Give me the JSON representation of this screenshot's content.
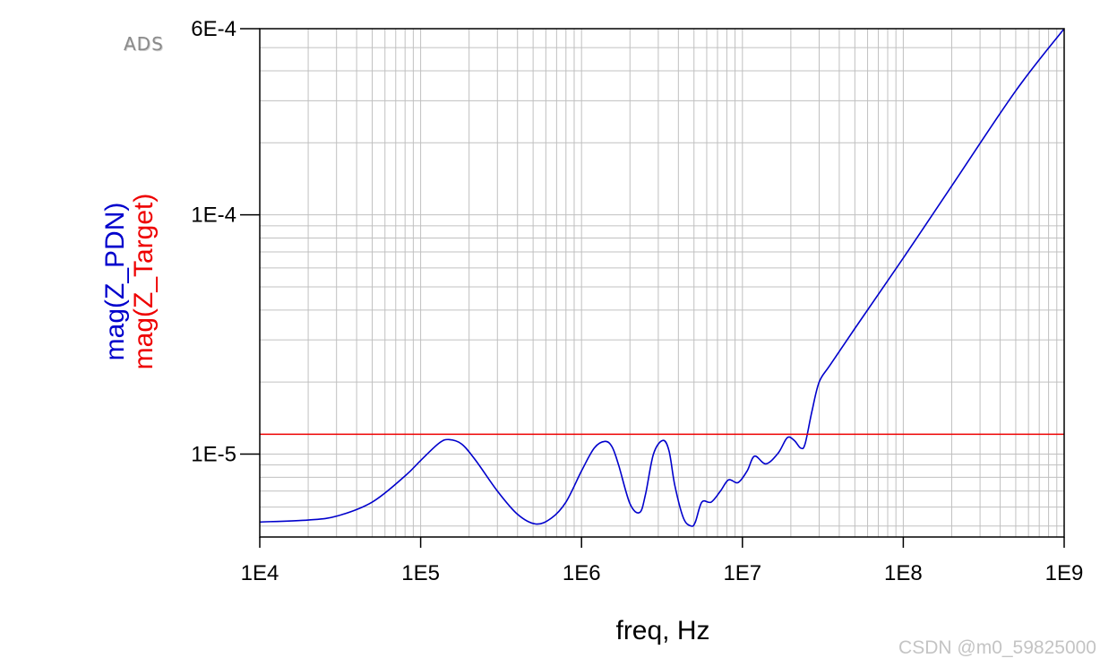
{
  "brand_label": "ADS",
  "watermark": "CSDN @m0_59825000",
  "colors": {
    "z_pdn": "#0000cc",
    "z_target": "#ee0000",
    "grid": "#c0c0c0",
    "frame": "#000000"
  },
  "chart_data": {
    "type": "line",
    "xlabel": "freq, Hz",
    "ylabels": [
      {
        "text": "mag(Z_PDN)",
        "color": "#0000cc"
      },
      {
        "text": "mag(Z_Target)",
        "color": "#ee0000"
      }
    ],
    "xscale": "log",
    "yscale": "log",
    "xlim": [
      10000,
      1000000000
    ],
    "ylim": [
      4.5e-06,
      0.0006
    ],
    "xticks": [
      {
        "value": 10000,
        "label": "1E4"
      },
      {
        "value": 100000,
        "label": "1E5"
      },
      {
        "value": 1000000,
        "label": "1E6"
      },
      {
        "value": 10000000,
        "label": "1E7"
      },
      {
        "value": 100000000,
        "label": "1E8"
      },
      {
        "value": 1000000000,
        "label": "1E9"
      }
    ],
    "yticks": [
      {
        "value": 1e-05,
        "label": "1E-5"
      },
      {
        "value": 0.0001,
        "label": "1E-4"
      },
      {
        "value": 0.0006,
        "label": "6E-4"
      }
    ],
    "grid": true,
    "series": [
      {
        "name": "mag(Z_PDN)",
        "color": "#0000cc",
        "x": [
          10000,
          20000,
          30000,
          50000,
          80000,
          100000,
          130000,
          150000,
          180000,
          220000,
          300000,
          400000,
          520000,
          650000,
          800000,
          1000000,
          1200000,
          1400000,
          1550000,
          1700000,
          2000000,
          2300000,
          2500000,
          2800000,
          3200000,
          3500000,
          3800000,
          4300000,
          4800000,
          5100000,
          5600000,
          6400000,
          7300000,
          8200000,
          9400000,
          10700000,
          11900000,
          14000000,
          16700000,
          19000000,
          21000000,
          23000000,
          24500000,
          27000000,
          30000000,
          35000000,
          50000000,
          100000000,
          200000000,
          500000000,
          1000000000
        ],
        "y": [
          5.2e-06,
          5.3e-06,
          5.5e-06,
          6.3e-06,
          8.1e-06,
          9.4e-06,
          1.11e-05,
          1.15e-05,
          1.1e-05,
          9.4e-06,
          7e-06,
          5.6e-06,
          5.1e-06,
          5.4e-06,
          6.3e-06,
          8.5e-06,
          1.06e-05,
          1.13e-05,
          1.07e-05,
          9e-06,
          6.2e-06,
          5.7e-06,
          6.8e-06,
          1e-05,
          1.14e-05,
          1.03e-05,
          7.4e-06,
          5.4e-06,
          5e-06,
          5.2e-06,
          6.3e-06,
          6.3e-06,
          7e-06,
          7.8e-06,
          7.6e-06,
          8.5e-06,
          9.8e-06,
          9.1e-06,
          1.01e-05,
          1.17e-05,
          1.14e-05,
          1.06e-05,
          1.1e-05,
          1.5e-05,
          2e-05,
          2.35e-05,
          3.35e-05,
          6.6e-05,
          0.000132,
          0.00033,
          0.0006
        ]
      },
      {
        "name": "mag(Z_Target)",
        "color": "#ee0000",
        "x": [
          10000,
          1000000000
        ],
        "y": [
          1.21e-05,
          1.21e-05
        ]
      }
    ]
  }
}
